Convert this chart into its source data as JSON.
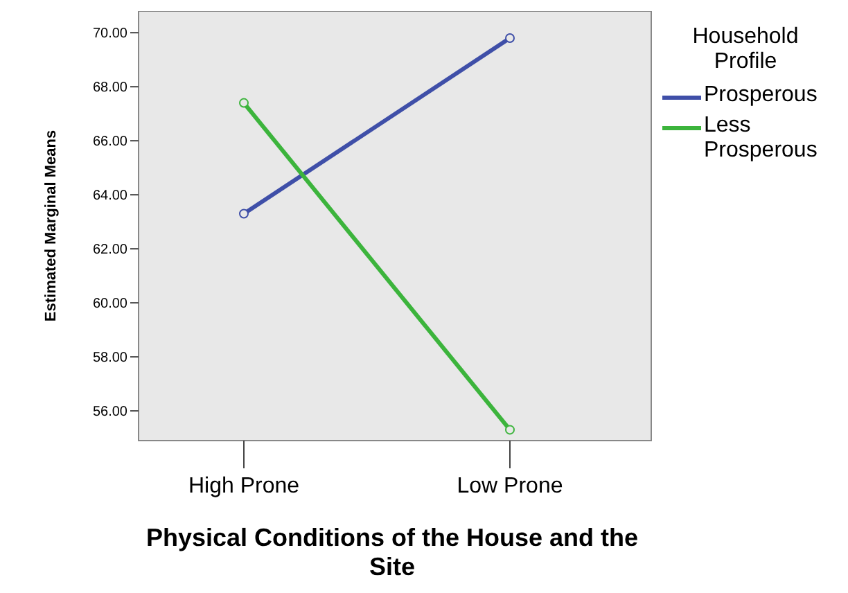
{
  "chart_data": {
    "type": "line",
    "xlabel": "Physical Conditions of the House and the Site",
    "ylabel": "Estimated Marginal Means",
    "legend_title": "Household Profile",
    "categories": [
      "High Prone",
      "Low Prone"
    ],
    "series": [
      {
        "name": "Prosperous",
        "color": "#3f4fa8",
        "values": [
          63.3,
          69.8
        ]
      },
      {
        "name": "Less Prosperous",
        "color": "#3cb43c",
        "values": [
          67.4,
          55.3
        ]
      }
    ],
    "ylim": [
      54.9,
      70.8
    ],
    "yticks": [
      {
        "value": 56,
        "label": "56.00"
      },
      {
        "value": 58,
        "label": "58.00"
      },
      {
        "value": 60,
        "label": "60.00"
      },
      {
        "value": 62,
        "label": "62.00"
      },
      {
        "value": 64,
        "label": "64.00"
      },
      {
        "value": 66,
        "label": "66.00"
      },
      {
        "value": 68,
        "label": "68.00"
      },
      {
        "value": 70,
        "label": "70.00"
      }
    ],
    "grid": false,
    "legend": "right",
    "marker": "circle",
    "line_style": "solid"
  }
}
